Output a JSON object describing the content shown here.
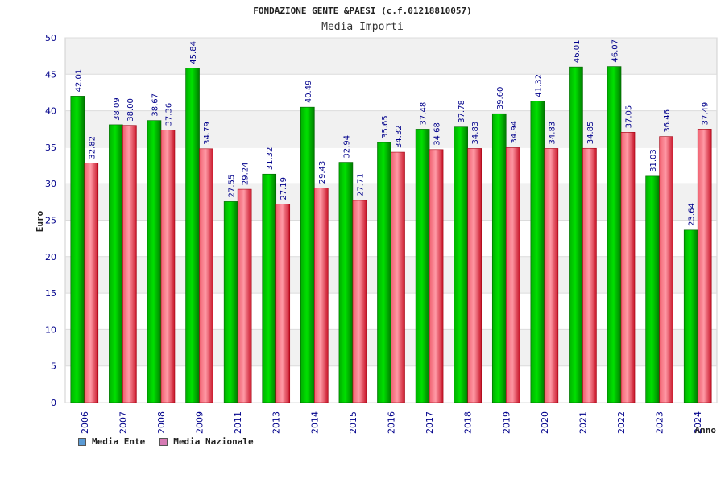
{
  "chart_data": {
    "type": "bar",
    "title": "FONDAZIONE GENTE &PAESI (c.f.01218810057)",
    "subtitle": "Media Importi",
    "ylabel": "Euro",
    "xlabel": "Anno",
    "ylim": [
      0,
      50
    ],
    "yticks": [
      0,
      5,
      10,
      15,
      20,
      25,
      30,
      35,
      40,
      45,
      50
    ],
    "categories": [
      "2006",
      "2007",
      "2008",
      "2009",
      "2011",
      "2013",
      "2014",
      "2015",
      "2016",
      "2017",
      "2018",
      "2019",
      "2020",
      "2021",
      "2022",
      "2023",
      "2024"
    ],
    "series": [
      {
        "name": "Media Ente",
        "color": "#00aa00",
        "legend_color": "#5b9bd5",
        "values": [
          42.01,
          38.09,
          38.67,
          45.84,
          27.55,
          31.32,
          40.49,
          32.94,
          35.65,
          37.48,
          37.78,
          39.6,
          41.32,
          46.01,
          46.07,
          31.03,
          23.64
        ],
        "labels": [
          "42.01",
          "38.09",
          "38.67",
          "45.84",
          "27.55",
          "31.32",
          "40.49",
          "32.94",
          "35.65",
          "37.48",
          "37.78",
          "39.60",
          "41.32",
          "46.01",
          "46.07",
          "31.03",
          "23.64"
        ]
      },
      {
        "name": "Media Nazionale",
        "color": "#e8283c",
        "legend_color": "#d67bb4",
        "values": [
          32.82,
          38.0,
          37.36,
          34.79,
          29.24,
          27.19,
          29.43,
          27.71,
          34.32,
          34.68,
          34.83,
          34.94,
          34.83,
          34.85,
          37.05,
          36.46,
          37.49
        ],
        "labels": [
          "32.82",
          "38.00",
          "37.36",
          "34.79",
          "29.24",
          "27.19",
          "29.43",
          "27.71",
          "34.32",
          "34.68",
          "34.83",
          "34.94",
          "34.83",
          "34.85",
          "37.05",
          "36.46",
          "37.49"
        ]
      }
    ],
    "grid": true,
    "legend_position": "bottom-left"
  }
}
